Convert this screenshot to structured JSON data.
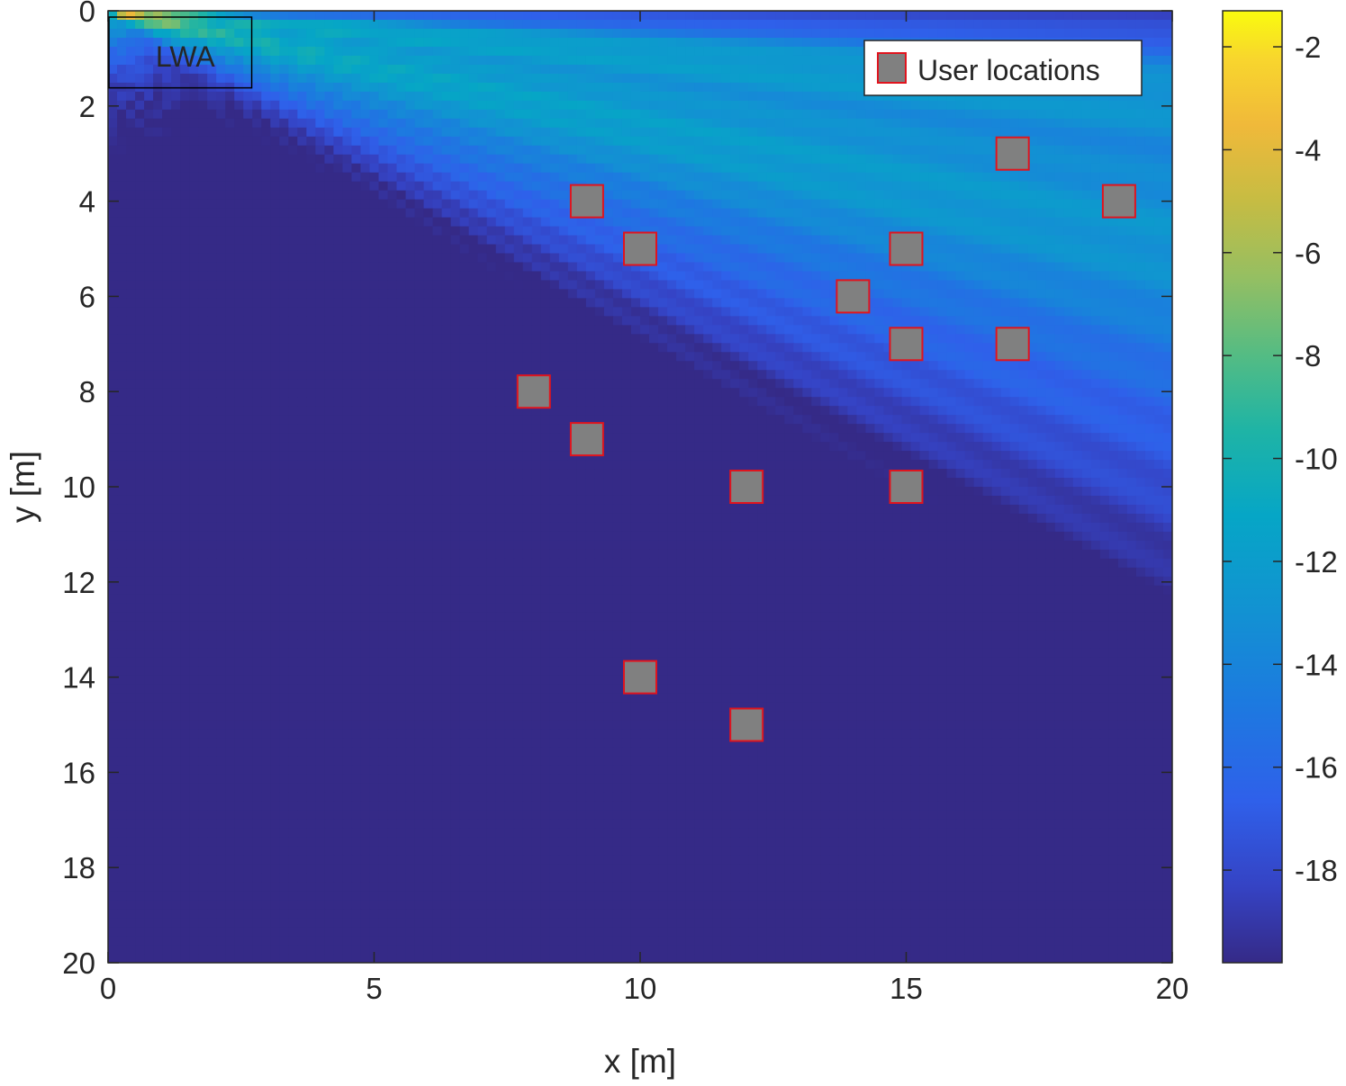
{
  "chart_data": {
    "type": "heatmap",
    "xlabel": "x [m]",
    "ylabel": "y [m]",
    "xlim": [
      0,
      20
    ],
    "ylim": [
      0,
      20
    ],
    "y_axis_reversed": true,
    "x_ticks": [
      "0",
      "5",
      "10",
      "15",
      "20"
    ],
    "y_ticks": [
      "0",
      "2",
      "4",
      "6",
      "8",
      "10",
      "12",
      "14",
      "16",
      "18",
      "20"
    ],
    "colorbar": {
      "range": [
        -19.8,
        -1.3
      ],
      "ticks": [
        "-2",
        "-4",
        "-6",
        "-8",
        "-10",
        "-12",
        "-14",
        "-16",
        "-18"
      ],
      "colormap": "parula"
    },
    "annotation": {
      "label": "LWA",
      "x_range": [
        0,
        2.7
      ],
      "y_range": [
        0,
        1.6
      ]
    },
    "legend": {
      "placement": "top-right",
      "entries": [
        "User locations"
      ]
    },
    "series": [
      {
        "name": "User locations",
        "marker": "square",
        "face_color": "#808080",
        "edge_color": "#e0141e",
        "points": [
          [
            17,
            3
          ],
          [
            9,
            4
          ],
          [
            19,
            4
          ],
          [
            10,
            5
          ],
          [
            15,
            5
          ],
          [
            14,
            6
          ],
          [
            15,
            7
          ],
          [
            17,
            7
          ],
          [
            8,
            8
          ],
          [
            9,
            9
          ],
          [
            12,
            10
          ],
          [
            15,
            10
          ],
          [
            10,
            14
          ],
          [
            12,
            15
          ]
        ]
      }
    ]
  }
}
